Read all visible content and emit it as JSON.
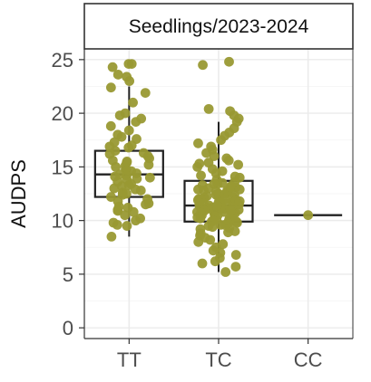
{
  "chart_data": {
    "type": "box-jitter",
    "facet_title": "Seedlings/2023-2024",
    "xlabel": "",
    "ylabel": "AUDPS",
    "categories": [
      "TT",
      "TC",
      "CC"
    ],
    "ylim": [
      -1,
      26
    ],
    "yticks": [
      0,
      5,
      10,
      15,
      20,
      25
    ],
    "grid": true,
    "point_color": "#999933",
    "box_color": "#222222",
    "boxes": [
      {
        "category": "TT",
        "min": 8.5,
        "q1": 12.2,
        "median": 14.3,
        "q3": 16.5,
        "max": 22.5
      },
      {
        "category": "TC",
        "min": 5.2,
        "q1": 9.9,
        "median": 11.4,
        "q3": 13.7,
        "max": 19.2
      },
      {
        "category": "CC",
        "min": 10.5,
        "q1": 10.5,
        "median": 10.5,
        "q3": 10.5,
        "max": 10.5
      }
    ],
    "series": [
      {
        "category": "TT",
        "values": [
          24.6,
          24.6,
          24.3,
          23.6,
          23.4,
          23.0,
          22.4,
          21.9,
          21.0,
          20.0,
          19.8,
          19.5,
          19.2,
          18.8,
          18.4,
          18.0,
          17.6,
          17.3,
          17.0,
          16.8,
          16.5,
          16.2,
          16.0,
          15.8,
          15.6,
          15.4,
          15.2,
          15.0,
          14.8,
          14.6,
          14.4,
          14.3,
          14.1,
          14.0,
          13.8,
          13.6,
          13.4,
          13.2,
          13.0,
          12.8,
          12.6,
          12.4,
          12.2,
          12.0,
          11.8,
          11.5,
          11.2,
          11.0,
          10.8,
          10.5,
          10.2,
          10.0,
          9.8,
          9.6,
          9.5,
          8.5,
          16.9,
          15.1,
          13.9,
          12.9,
          11.6,
          17.8,
          14.7,
          13.3,
          12.5,
          16.3,
          15.5,
          14.2,
          11.3,
          10.9
        ]
      },
      {
        "category": "TC",
        "values": [
          24.8,
          24.5,
          20.4,
          20.2,
          19.8,
          19.5,
          19.2,
          18.6,
          18.2,
          17.9,
          17.5,
          17.2,
          16.9,
          16.6,
          16.3,
          16.0,
          15.8,
          15.6,
          15.4,
          15.2,
          15.0,
          14.8,
          14.6,
          14.4,
          14.2,
          14.0,
          13.8,
          13.6,
          13.5,
          13.4,
          13.3,
          13.2,
          13.1,
          13.0,
          12.9,
          12.8,
          12.7,
          12.6,
          12.5,
          12.4,
          12.3,
          12.2,
          12.1,
          12.0,
          12.0,
          11.9,
          11.8,
          11.7,
          11.7,
          11.6,
          11.5,
          11.5,
          11.4,
          11.4,
          11.3,
          11.2,
          11.2,
          11.1,
          11.0,
          11.0,
          10.9,
          10.8,
          10.8,
          10.7,
          10.6,
          10.5,
          10.5,
          10.4,
          10.3,
          10.2,
          10.1,
          10.0,
          9.9,
          9.8,
          9.7,
          9.6,
          9.5,
          9.4,
          9.2,
          9.0,
          8.8,
          8.6,
          8.4,
          8.2,
          8.0,
          7.8,
          7.5,
          7.2,
          7.0,
          6.8,
          6.5,
          6.2,
          6.0,
          5.7,
          5.2,
          12.2,
          11.9,
          11.6,
          11.3,
          11.0,
          10.7,
          10.4,
          12.5,
          12.8,
          13.1,
          9.9,
          9.6,
          11.8,
          11.1,
          10.6,
          12.4,
          10.2,
          11.5,
          11.2,
          12.0,
          13.4,
          9.3,
          10.9,
          11.7,
          12.7,
          14.1,
          8.9,
          15.3,
          10.0,
          11.4,
          12.9
        ]
      },
      {
        "category": "CC",
        "values": [
          10.5
        ]
      }
    ]
  }
}
